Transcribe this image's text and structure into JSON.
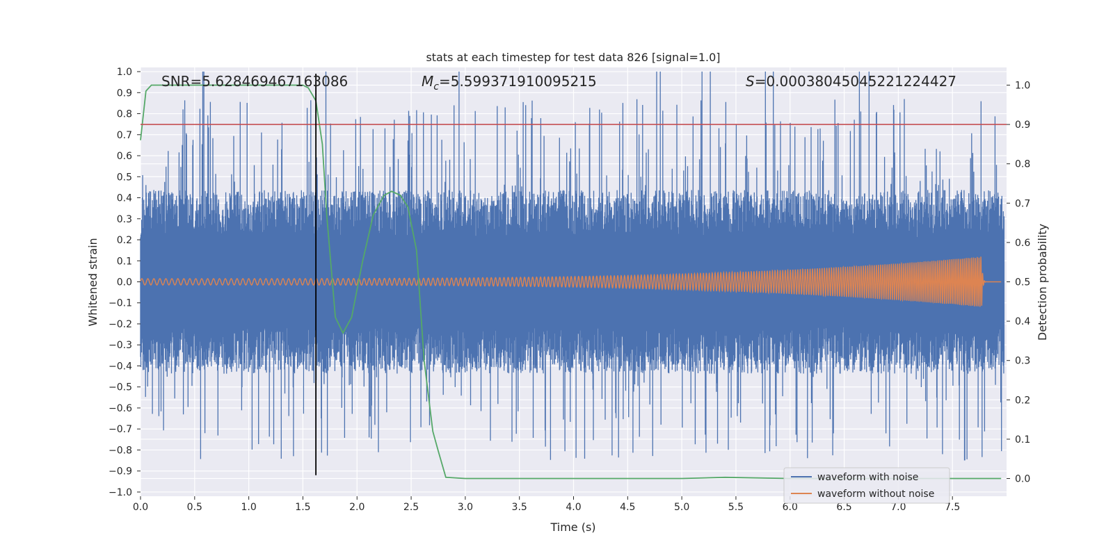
{
  "chart_data": {
    "type": "line",
    "title": "stats at each timestep for test data 826 [signal=1.0]",
    "xlabel": "Time (s)",
    "ylabel": "Whitened strain",
    "y2label": "Detection probability",
    "xlim": [
      0.0,
      8.0
    ],
    "ylim": [
      -1.02,
      1.02
    ],
    "y2lim": [
      -0.045,
      1.045
    ],
    "grid": true,
    "x_ticks": [
      0.0,
      0.5,
      1.0,
      1.5,
      2.0,
      2.5,
      3.0,
      3.5,
      4.0,
      4.5,
      5.0,
      5.5,
      6.0,
      6.5,
      7.0,
      7.5
    ],
    "x_tick_labels": [
      "0.0",
      "0.5",
      "1.0",
      "1.5",
      "2.0",
      "2.5",
      "3.0",
      "3.5",
      "4.0",
      "4.5",
      "5.0",
      "5.5",
      "6.0",
      "6.5",
      "7.0",
      "7.5"
    ],
    "y_ticks": [
      -1.0,
      -0.9,
      -0.8,
      -0.7,
      -0.6,
      -0.5,
      -0.4,
      -0.3,
      -0.2,
      -0.1,
      0.0,
      0.1,
      0.2,
      0.3,
      0.4,
      0.5,
      0.6,
      0.7,
      0.8,
      0.9,
      1.0
    ],
    "y_tick_labels": [
      "−1.0",
      "−0.9",
      "−0.8",
      "−0.7",
      "−0.6",
      "−0.5",
      "−0.4",
      "−0.3",
      "−0.2",
      "−0.1",
      "0.0",
      "0.1",
      "0.2",
      "0.3",
      "0.4",
      "0.5",
      "0.6",
      "0.7",
      "0.8",
      "0.9",
      "1.0"
    ],
    "y2_ticks": [
      0.0,
      0.1,
      0.2,
      0.3,
      0.4,
      0.5,
      0.6,
      0.7,
      0.8,
      0.9,
      1.0
    ],
    "y2_tick_labels": [
      "0.0",
      "0.1",
      "0.2",
      "0.3",
      "0.4",
      "0.5",
      "0.6",
      "0.7",
      "0.8",
      "0.9",
      "1.0"
    ],
    "annotations": {
      "snr": "SNR=5.628469467163086",
      "mc_symbol": "M",
      "mc_subscript": "c",
      "mc_value": "=5.599371910095215",
      "s_symbol": "S",
      "s_value": "=0.00038045045221224427"
    },
    "threshold_line": {
      "y2": 0.9,
      "color": "#c44e52"
    },
    "marker_line": {
      "x": 1.62,
      "y_from": -0.92,
      "y_to": 0.99,
      "color": "#000000"
    },
    "series": [
      {
        "name": "waveform with noise",
        "color": "#4c72b0",
        "axis": "left",
        "description_values": {
          "typical_envelope": 0.38,
          "peak_abs": 1.0
        }
      },
      {
        "name": "waveform without noise",
        "color": "#dd8452",
        "axis": "left",
        "chirp": {
          "start_amplitude": 0.015,
          "end_amplitude": 0.12,
          "merger_time": 7.77,
          "start_freq_hz": 18,
          "end_freq_hz": 60
        }
      },
      {
        "name": "detection probability",
        "color": "#55a868",
        "axis": "right",
        "x": [
          0.0,
          0.05,
          0.1,
          0.2,
          0.4,
          0.8,
          1.2,
          1.5,
          1.55,
          1.62,
          1.68,
          1.72,
          1.8,
          1.87,
          1.95,
          2.05,
          2.15,
          2.25,
          2.32,
          2.4,
          2.47,
          2.55,
          2.62,
          2.7,
          2.75,
          2.82,
          3.0,
          4.0,
          5.0,
          5.4,
          6.0,
          7.0,
          7.95
        ],
        "y": [
          0.86,
          0.985,
          1.0,
          1.0,
          1.0,
          1.0,
          1.0,
          1.0,
          0.993,
          0.96,
          0.85,
          0.67,
          0.41,
          0.37,
          0.41,
          0.55,
          0.67,
          0.72,
          0.73,
          0.72,
          0.69,
          0.58,
          0.3,
          0.12,
          0.07,
          0.003,
          0.0,
          0.0,
          0.0,
          0.003,
          0.0,
          0.0,
          0.0
        ]
      }
    ],
    "legend": {
      "placement": "lower-right",
      "entries": [
        {
          "label": "waveform with noise",
          "color": "#4c72b0"
        },
        {
          "label": "waveform without noise",
          "color": "#dd8452"
        }
      ]
    }
  }
}
